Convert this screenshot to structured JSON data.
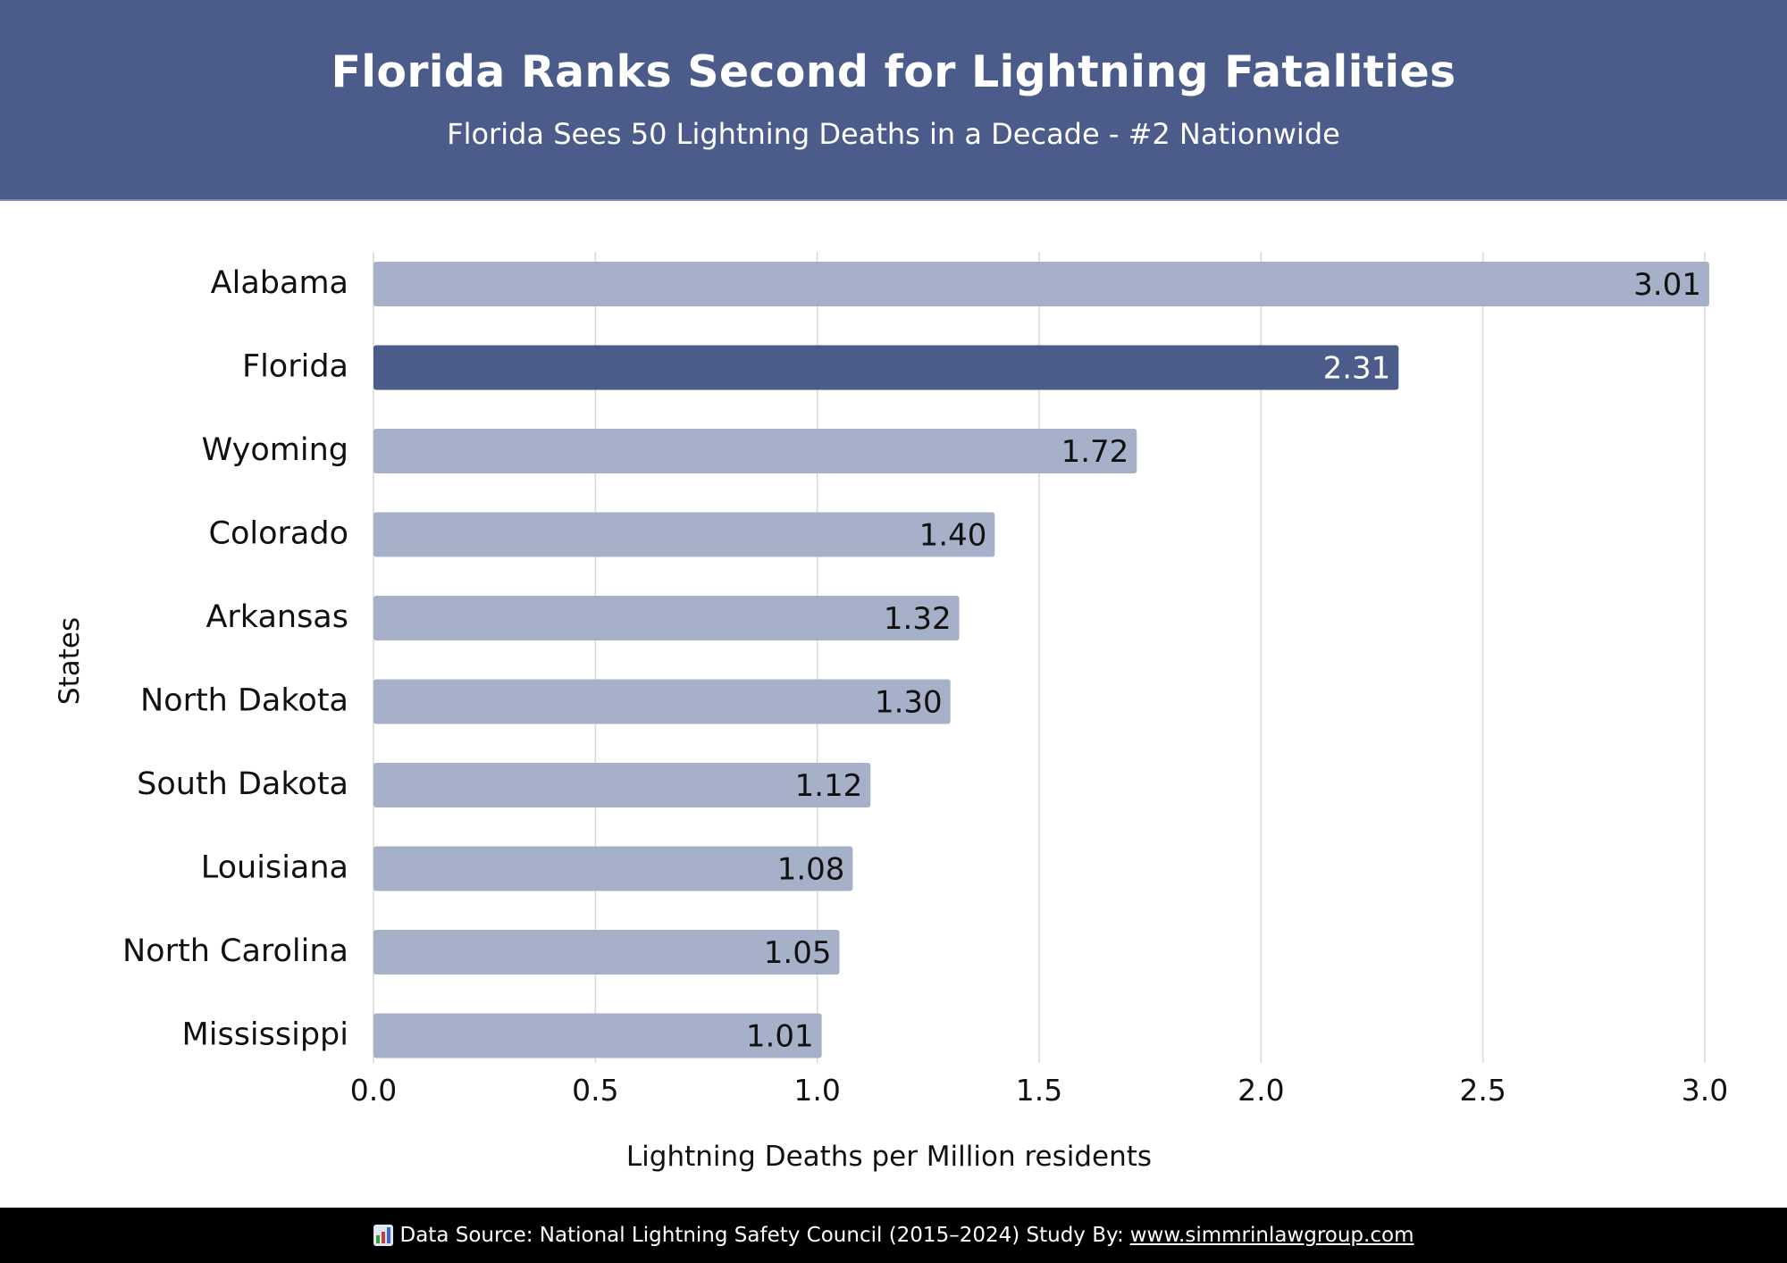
{
  "header": {
    "title": "Florida Ranks Second for Lightning Fatalities",
    "subtitle": "Florida Sees 50 Lightning Deaths in a Decade - #2 Nationwide"
  },
  "footer": {
    "icon": "bar-chart-icon",
    "source_text": "Data Source: National Lightning Safety Council (2015–2024) Study By:",
    "link_text": "www.simmrinlawgroup.com"
  },
  "colors": {
    "header_bg": "#4B5C8A",
    "highlight_bar": "#4B5C8A",
    "default_bar": "#A7B0C9",
    "gridline": "#D9D9D9",
    "footer_bg": "#000000"
  },
  "chart_data": {
    "type": "bar",
    "orientation": "horizontal",
    "title": "Florida Ranks Second for Lightning Fatalities",
    "subtitle": "Florida Sees 50 Lightning Deaths in a Decade - #2 Nationwide",
    "xlabel": "Lightning Deaths per Million residents",
    "ylabel": "States",
    "categories": [
      "Alabama",
      "Florida",
      "Wyoming",
      "Colorado",
      "Arkansas",
      "North Dakota",
      "South Dakota",
      "Louisiana",
      "North Carolina",
      "Mississippi"
    ],
    "values": [
      3.01,
      2.31,
      1.72,
      1.4,
      1.32,
      1.3,
      1.12,
      1.08,
      1.05,
      1.01
    ],
    "value_labels": [
      "3.01",
      "2.31",
      "1.72",
      "1.40",
      "1.32",
      "1.30",
      "1.12",
      "1.08",
      "1.05",
      "1.01"
    ],
    "highlight": "Florida",
    "xlim": [
      0,
      3.0
    ],
    "xticks": [
      0.0,
      0.5,
      1.0,
      1.5,
      2.0,
      2.5,
      3.0
    ],
    "xtick_labels": [
      "0.0",
      "0.5",
      "1.0",
      "1.5",
      "2.0",
      "2.5",
      "3.0"
    ],
    "grid": "vertical",
    "legend": "none"
  }
}
